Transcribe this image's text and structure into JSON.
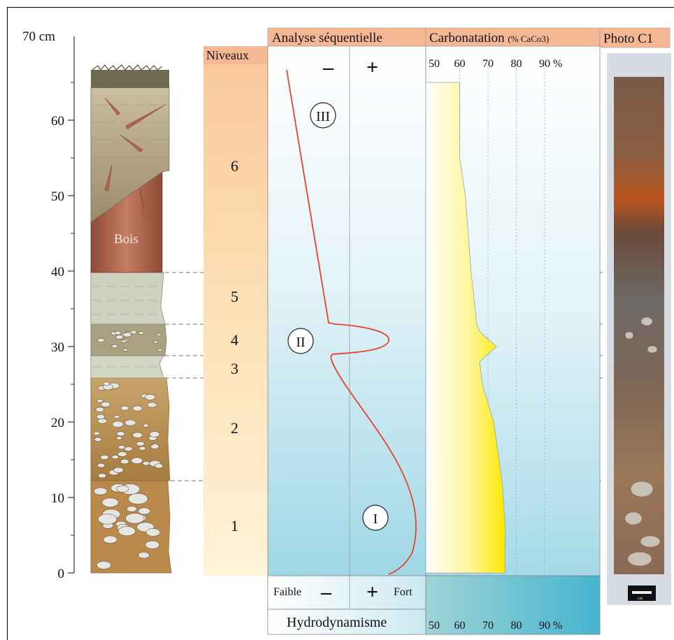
{
  "axis": {
    "unit_label": "70 cm",
    "ticks": [
      {
        "value": 0,
        "label": "0"
      },
      {
        "value": 10,
        "label": "10"
      },
      {
        "value": 20,
        "label": "20"
      },
      {
        "value": 30,
        "label": "30"
      },
      {
        "value": 40,
        "label": "40"
      },
      {
        "value": 50,
        "label": "50"
      },
      {
        "value": 60,
        "label": "60"
      }
    ]
  },
  "log": {
    "wood_label": "Bois"
  },
  "niveaux": {
    "header": "Niveaux",
    "levels": [
      "6",
      "5",
      "4",
      "3",
      "2",
      "1"
    ]
  },
  "sequence": {
    "header": "Analyse séquentielle",
    "minus": "–",
    "plus": "+",
    "marks": [
      "III",
      "II",
      "I"
    ]
  },
  "hydro": {
    "faible": "Faible",
    "fort": "Fort",
    "minus": "–",
    "plus": "+",
    "label": "Hydrodynamisme"
  },
  "carbonatation": {
    "header_main": "Carbonatation",
    "header_unit": "(% CaCo3)",
    "scale_top": [
      "50",
      "60",
      "70",
      "80",
      "90 %"
    ],
    "scale_bottom": [
      "50",
      "60",
      "70",
      "80",
      "90 %"
    ]
  },
  "photo": {
    "header": "Photo C1",
    "scale_label": "cm"
  },
  "chart_data": {
    "type": "line",
    "x": [
      0,
      6,
      12,
      20,
      25,
      28,
      29,
      30,
      31,
      32,
      33,
      40,
      50,
      55,
      60,
      65
    ],
    "series": [
      {
        "values": [
          76,
          76,
          75,
          72,
          68,
          67,
          70,
          73,
          70,
          67,
          66,
          64,
          62,
          60,
          60,
          60
        ]
      }
    ]
  },
  "colors": {
    "wood": "#a9604a",
    "gravel_matrix": "#b8935a",
    "sequence_curve": "#e8432a",
    "niveaux_band": "#f9d9a6",
    "carbonate_fill": "#fff24a",
    "water_blue": "#8fd3e6"
  }
}
